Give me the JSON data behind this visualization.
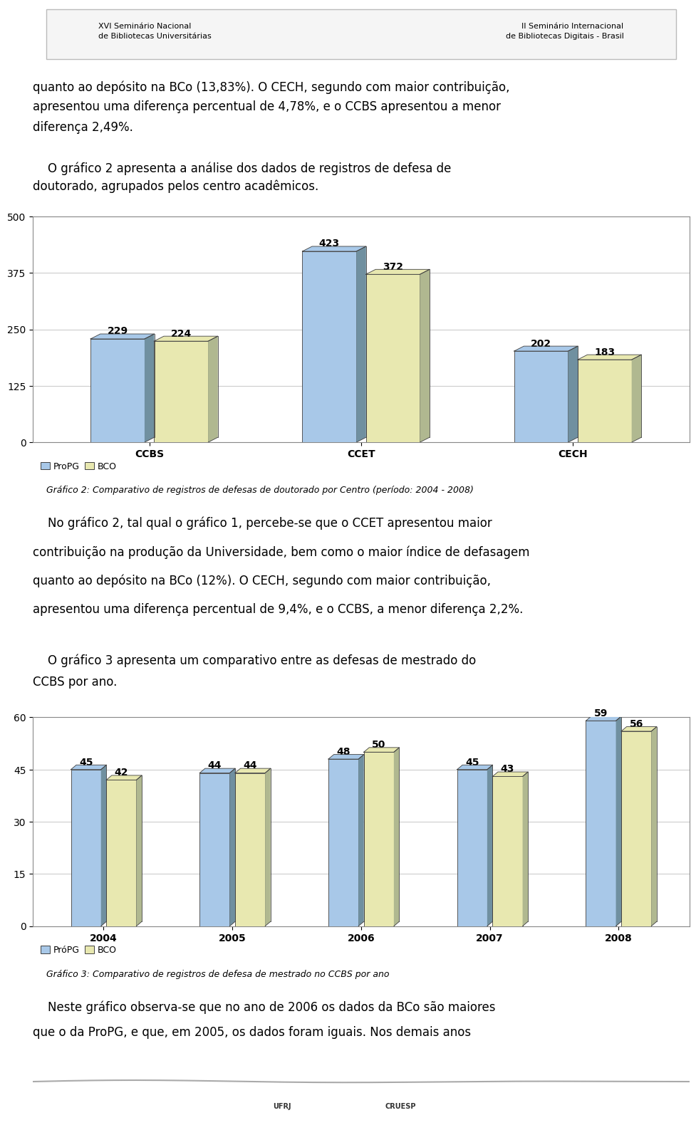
{
  "page_bg": "#ffffff",
  "text1_lines": [
    "quanto ao depósito na BCo (13,83%). O CECH, segundo com maior contribuição,",
    "apresentou uma diferença percentual de 4,78%, e o CCBS apresentou a menor",
    "diferença 2,49%."
  ],
  "text2_lines": [
    "    O gráfico 2 apresenta a análise dos dados de registros de defesa de",
    "doutorado, agrupados pelos centro acadêmicos."
  ],
  "chart1_categories": [
    "CCBS",
    "CCET",
    "CECH"
  ],
  "chart1_propg": [
    229,
    423,
    202
  ],
  "chart1_bco": [
    224,
    372,
    183
  ],
  "chart1_ylim": [
    0,
    500
  ],
  "chart1_yticks": [
    0,
    125,
    250,
    375,
    500
  ],
  "chart1_legend_propg": "ProPG",
  "chart1_legend_bco": "BCO",
  "chart1_caption": "Gráfico 2: Comparativo de registros de defesas de doutorado por Centro (período: 2004 - 2008)",
  "text3_lines": [
    "    No gráfico 2, tal qual o gráfico 1, percebe-se que o CCET apresentou maior",
    "contribuição na produção da Universidade, bem como o maior índice de defasagem",
    "quanto ao depósito na BCo (12%). O CECH, segundo com maior contribuição,",
    "apresentou uma diferença percentual de 9,4%, e o CCBS, a menor diferença 2,2%."
  ],
  "text4_lines": [
    "    O gráfico 3 apresenta um comparativo entre as defesas de mestrado do",
    "CCBS por ano."
  ],
  "chart2_categories": [
    "2004",
    "2005",
    "2006",
    "2007",
    "2008"
  ],
  "chart2_propg": [
    45,
    44,
    48,
    45,
    59
  ],
  "chart2_bco": [
    42,
    44,
    50,
    43,
    56
  ],
  "chart2_ylim": [
    0,
    60
  ],
  "chart2_yticks": [
    0,
    15,
    30,
    45,
    60
  ],
  "chart2_legend_propg": "PróPG",
  "chart2_legend_bco": "BCO",
  "chart2_caption": "Gráfico 3: Comparativo de registros de defesa de mestrado no CCBS por ano",
  "text5_lines": [
    "    Neste gráfico observa-se que no ano de 2006 os dados da BCo são maiores",
    "que o da ProPG, e que, em 2005, os dados foram iguais. Nos demais anos"
  ],
  "bar_color_propg": "#A8C8E8",
  "bar_color_bco": "#E8E8B0",
  "bar_side_color": "#7090A0",
  "bar_top_color": "#B0B890",
  "bar_edge_color": "#404040",
  "grid_color": "#cccccc",
  "chart_bg": "#ffffff",
  "chart_border": "#888888",
  "text_fontsize": 12,
  "caption_fontsize": 9,
  "tick_fontsize": 10,
  "bar_label_fontsize": 10
}
